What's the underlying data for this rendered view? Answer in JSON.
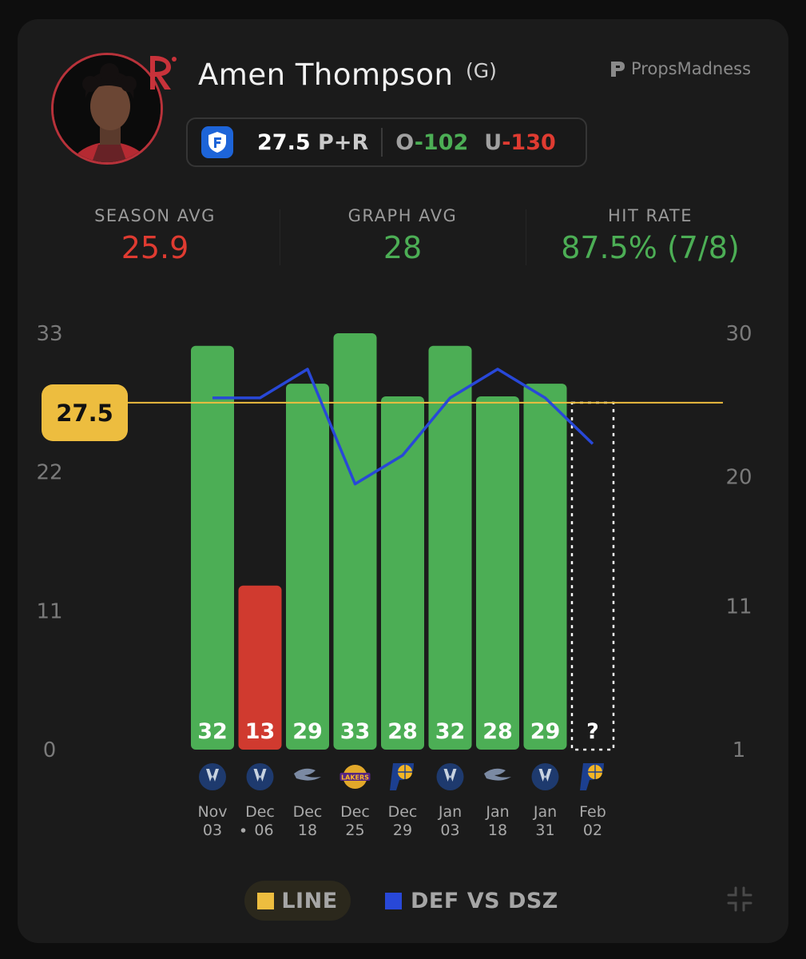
{
  "player": {
    "name": "Amen Thompson",
    "position": "(G)",
    "team_logo": "rockets-logo-icon"
  },
  "brand": {
    "name": "PropsMadness",
    "icon": "propsmadness-logo-icon"
  },
  "prop": {
    "book_icon": "fanduel-icon",
    "line": "27.5",
    "market": "P+R",
    "over_label": "O",
    "over_odds": "-102",
    "under_label": "U",
    "under_odds": "-130"
  },
  "stats": [
    {
      "label": "SEASON AVG",
      "value": "25.9",
      "color": "#df3b31"
    },
    {
      "label": "GRAPH AVG",
      "value": "28",
      "color": "#4cae55"
    },
    {
      "label": "HIT RATE",
      "value": "87.5% (7/8)",
      "color": "#4cae55"
    }
  ],
  "legend": [
    {
      "label": "LINE",
      "color": "#edbd3f"
    },
    {
      "label": "DEF VS DSZ",
      "color": "#2848d8"
    }
  ],
  "colors": {
    "hit": "#4cae55",
    "miss": "#d03a2f",
    "line": "#edbd3f",
    "def": "#2848d8"
  },
  "chart_data": {
    "type": "bar",
    "categories": [
      "Nov 03",
      "Dec 06",
      "Dec 18",
      "Dec 25",
      "Dec 29",
      "Jan 03",
      "Jan 18",
      "Jan 31",
      "Feb 02"
    ],
    "date_top": [
      "Nov",
      "Dec",
      "Dec",
      "Dec",
      "Dec",
      "Jan",
      "Jan",
      "Jan",
      "Feb"
    ],
    "date_bottom": [
      "03",
      "06",
      "18",
      "25",
      "29",
      "03",
      "18",
      "31",
      "02"
    ],
    "date_marker": [
      false,
      true,
      false,
      false,
      false,
      false,
      false,
      false,
      false
    ],
    "values": [
      32,
      13,
      29,
      33,
      28,
      32,
      28,
      29,
      null
    ],
    "value_labels": [
      "32",
      "13",
      "29",
      "33",
      "28",
      "32",
      "28",
      "29",
      "?"
    ],
    "opponents": [
      "mavericks-icon",
      "mavericks-icon",
      "pelicans-icon",
      "lakers-icon",
      "pacers-icon",
      "mavericks-icon",
      "pelicans-icon",
      "mavericks-icon",
      "pacers-icon"
    ],
    "line": 27.5,
    "line_label": "27.5",
    "ylim": [
      0,
      33
    ],
    "y_ticks": [
      "0",
      "11",
      "22",
      "33"
    ],
    "y2_ticks": [
      "1",
      "11",
      "20",
      "30"
    ],
    "y2lim": [
      1,
      30
    ],
    "series": [
      {
        "name": "DEF VS DSZ",
        "axis": "right",
        "values": [
          25.5,
          25.5,
          27.5,
          19.5,
          21.5,
          25.5,
          27.5,
          25.5,
          22.3
        ]
      }
    ]
  }
}
